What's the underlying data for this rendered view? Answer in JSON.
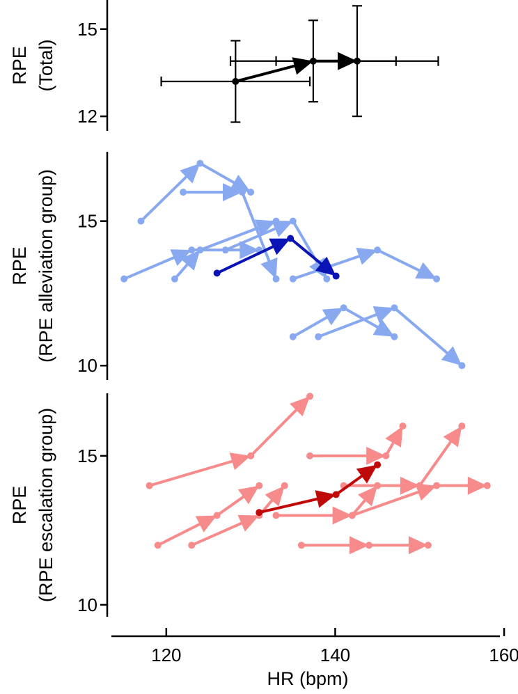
{
  "chart_data": [
    {
      "type": "line",
      "panel": "total",
      "ylabel": [
        "RPE",
        "(Total)"
      ],
      "ylim": [
        11.5,
        16
      ],
      "yticks": [
        12,
        15
      ],
      "series": [
        {
          "color": "#000000",
          "points": [
            {
              "x": 128.2,
              "y": 13.2,
              "xerr": 8.8,
              "yerr": 1.4
            },
            {
              "x": 137.4,
              "y": 13.9,
              "xerr": 9.8,
              "yerr": 1.4
            },
            {
              "x": 142.6,
              "y": 13.9,
              "xerr": 9.6,
              "yerr": 1.9
            }
          ]
        }
      ]
    },
    {
      "type": "line",
      "panel": "alleviation",
      "ylabel": [
        "RPE",
        "(RPE alleviation group)"
      ],
      "ylim": [
        9.5,
        17.4
      ],
      "yticks": [
        10,
        15
      ],
      "series": [
        {
          "color": "#88A8F0",
          "points": [
            {
              "x": 117,
              "y": 15
            },
            {
              "x": 124,
              "y": 17
            },
            {
              "x": 130,
              "y": 16
            }
          ]
        },
        {
          "color": "#88A8F0",
          "points": [
            {
              "x": 122,
              "y": 16
            },
            {
              "x": 129,
              "y": 16
            },
            {
              "x": 133,
              "y": 13
            }
          ]
        },
        {
          "color": "#88A8F0",
          "points": [
            {
              "x": 115,
              "y": 13
            },
            {
              "x": 123,
              "y": 14
            },
            {
              "x": 131,
              "y": 14
            }
          ]
        },
        {
          "color": "#88A8F0",
          "points": [
            {
              "x": 121,
              "y": 13
            },
            {
              "x": 124,
              "y": 14
            },
            {
              "x": 133,
              "y": 15
            }
          ]
        },
        {
          "color": "#88A8F0",
          "points": [
            {
              "x": 127,
              "y": 14
            },
            {
              "x": 135,
              "y": 15
            },
            {
              "x": 139,
              "y": 13
            }
          ]
        },
        {
          "color": "#88A8F0",
          "points": [
            {
              "x": 135,
              "y": 13
            },
            {
              "x": 145,
              "y": 14
            },
            {
              "x": 152,
              "y": 13
            }
          ]
        },
        {
          "color": "#88A8F0",
          "points": [
            {
              "x": 135,
              "y": 11
            },
            {
              "x": 141,
              "y": 12
            },
            {
              "x": 147,
              "y": 11
            }
          ]
        },
        {
          "color": "#88A8F0",
          "points": [
            {
              "x": 138,
              "y": 11
            },
            {
              "x": 147,
              "y": 12
            },
            {
              "x": 155,
              "y": 10
            }
          ]
        },
        {
          "color": "#0A14B4",
          "points": [
            {
              "x": 126,
              "y": 13.2
            },
            {
              "x": 134.7,
              "y": 14.4
            },
            {
              "x": 140.1,
              "y": 13.1
            }
          ]
        }
      ]
    },
    {
      "type": "line",
      "panel": "escalation",
      "ylabel": [
        "RPE",
        "(RPE escalation group)"
      ],
      "ylim": [
        9.6,
        17.1
      ],
      "yticks": [
        10,
        15
      ],
      "series": [
        {
          "color": "#F78A8A",
          "points": [
            {
              "x": 118,
              "y": 14
            },
            {
              "x": 130,
              "y": 15
            },
            {
              "x": 137,
              "y": 17
            }
          ]
        },
        {
          "color": "#F78A8A",
          "points": [
            {
              "x": 119,
              "y": 12
            },
            {
              "x": 126,
              "y": 13
            },
            {
              "x": 131,
              "y": 14
            }
          ]
        },
        {
          "color": "#F78A8A",
          "points": [
            {
              "x": 123,
              "y": 12
            },
            {
              "x": 131,
              "y": 13
            },
            {
              "x": 134,
              "y": 14
            }
          ]
        },
        {
          "color": "#F78A8A",
          "points": [
            {
              "x": 137,
              "y": 15
            },
            {
              "x": 146,
              "y": 15
            },
            {
              "x": 148,
              "y": 16
            }
          ]
        },
        {
          "color": "#F78A8A",
          "points": [
            {
              "x": 133,
              "y": 13
            },
            {
              "x": 142,
              "y": 13
            },
            {
              "x": 145,
              "y": 14
            }
          ]
        },
        {
          "color": "#F78A8A",
          "points": [
            {
              "x": 141,
              "y": 14
            },
            {
              "x": 150,
              "y": 14
            },
            {
              "x": 155,
              "y": 16
            }
          ]
        },
        {
          "color": "#F78A8A",
          "points": [
            {
              "x": 136,
              "y": 12
            },
            {
              "x": 144,
              "y": 12
            },
            {
              "x": 151,
              "y": 12
            }
          ]
        },
        {
          "color": "#F78A8A",
          "points": [
            {
              "x": 142,
              "y": 13
            },
            {
              "x": 152,
              "y": 14
            },
            {
              "x": 158,
              "y": 14
            }
          ]
        },
        {
          "color": "#C00A0A",
          "points": [
            {
              "x": 131,
              "y": 13.1
            },
            {
              "x": 140.1,
              "y": 13.7
            },
            {
              "x": 145,
              "y": 14.7
            }
          ]
        }
      ]
    }
  ],
  "x_axis": {
    "label": "HR (bpm)",
    "ticks": [
      120,
      140,
      160
    ],
    "xlim": [
      113.5,
      159.5
    ]
  }
}
